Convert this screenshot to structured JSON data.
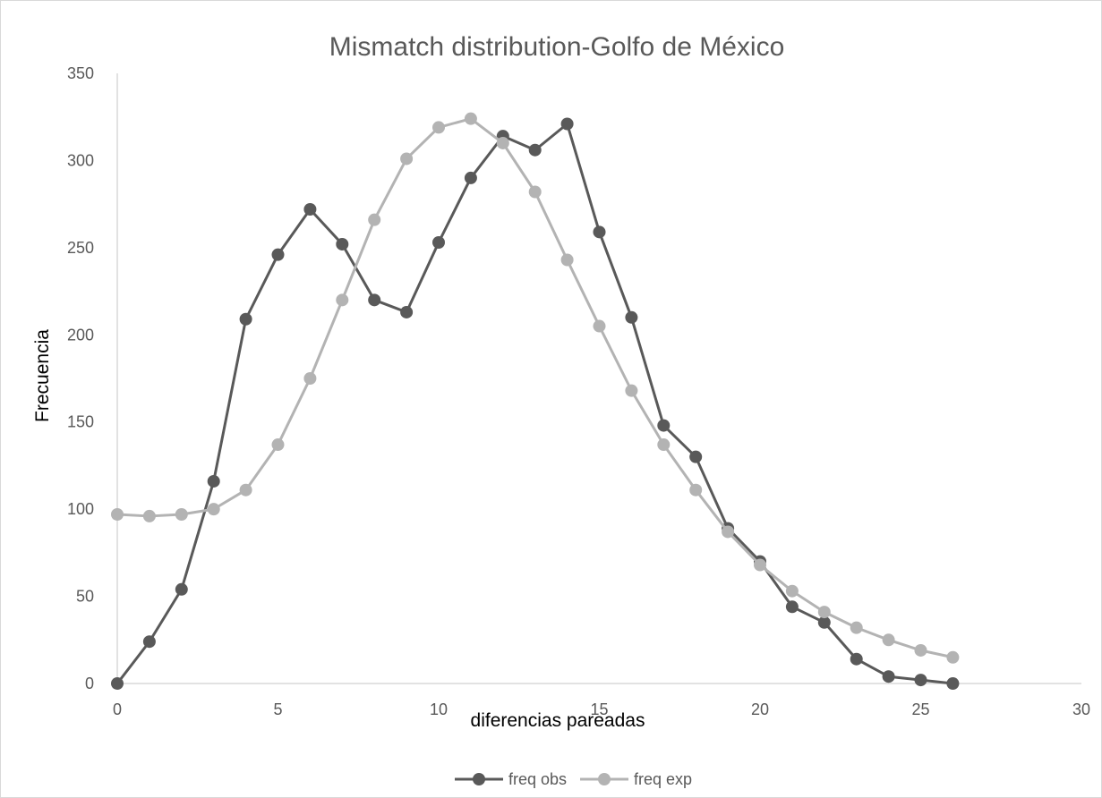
{
  "chart_data": {
    "type": "line",
    "title": "Mismatch distribution-Golfo de México",
    "xlabel": "diferencias pareadas",
    "ylabel": "Frecuencia",
    "xlim": [
      0,
      30
    ],
    "ylim": [
      0,
      350
    ],
    "x_ticks": [
      "0",
      "5",
      "10",
      "15",
      "20",
      "25",
      "30"
    ],
    "y_ticks": [
      "0",
      "50",
      "100",
      "150",
      "200",
      "250",
      "300",
      "350"
    ],
    "grid": false,
    "legend_position": "bottom",
    "x": [
      0,
      1,
      2,
      3,
      4,
      5,
      6,
      7,
      8,
      9,
      10,
      11,
      12,
      13,
      14,
      15,
      16,
      17,
      18,
      19,
      20,
      21,
      22,
      23,
      24,
      25,
      26
    ],
    "series": [
      {
        "name": "freq obs",
        "color": "#595959",
        "values": [
          0,
          24,
          54,
          116,
          209,
          246,
          272,
          252,
          220,
          213,
          253,
          290,
          314,
          306,
          321,
          259,
          210,
          148,
          130,
          89,
          70,
          44,
          35,
          14,
          4,
          2,
          0
        ]
      },
      {
        "name": "freq exp",
        "color": "#b3b3b3",
        "values": [
          97,
          96,
          97,
          100,
          111,
          137,
          175,
          220,
          266,
          301,
          319,
          324,
          310,
          282,
          243,
          205,
          168,
          137,
          111,
          87,
          68,
          53,
          41,
          32,
          25,
          19,
          15
        ]
      }
    ]
  }
}
